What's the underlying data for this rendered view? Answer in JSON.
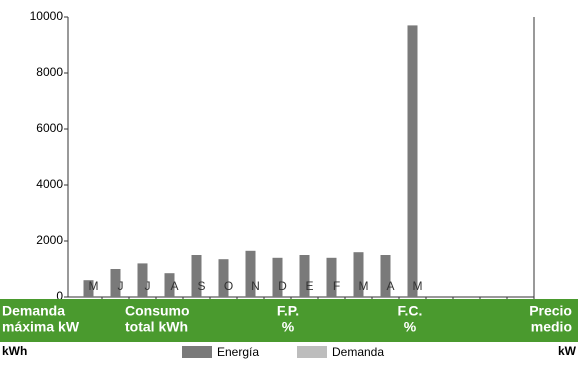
{
  "chart_data": {
    "type": "bar",
    "categories": [
      "M",
      "J",
      "J",
      "A",
      "S",
      "O",
      "N",
      "D",
      "E",
      "F",
      "M",
      "A",
      "M",
      null,
      null,
      null,
      null
    ],
    "series": [
      {
        "name": "Energía",
        "color": "#7a7a7a",
        "values": [
          600,
          1000,
          1200,
          850,
          1500,
          1350,
          1650,
          1400,
          1500,
          1400,
          1600,
          1500,
          9700,
          null,
          null,
          null,
          null
        ]
      },
      {
        "name": "Demanda",
        "color": "#bdbdbd",
        "values": [
          null,
          null,
          null,
          null,
          null,
          null,
          null,
          null,
          null,
          null,
          null,
          null,
          null,
          null,
          null,
          null,
          null
        ]
      }
    ],
    "ylim": [
      0,
      10000
    ],
    "yticks": [
      0,
      2000,
      4000,
      6000,
      8000,
      10000
    ],
    "band_labels": [
      [
        "Demanda",
        "máxima kW"
      ],
      [
        "Consumo",
        "total kWh"
      ],
      [
        "F.P.",
        "%"
      ],
      [
        "F.C.",
        "%"
      ],
      [
        "Precio",
        "medio"
      ]
    ],
    "unit_left": "kWh",
    "unit_right": "kW"
  }
}
